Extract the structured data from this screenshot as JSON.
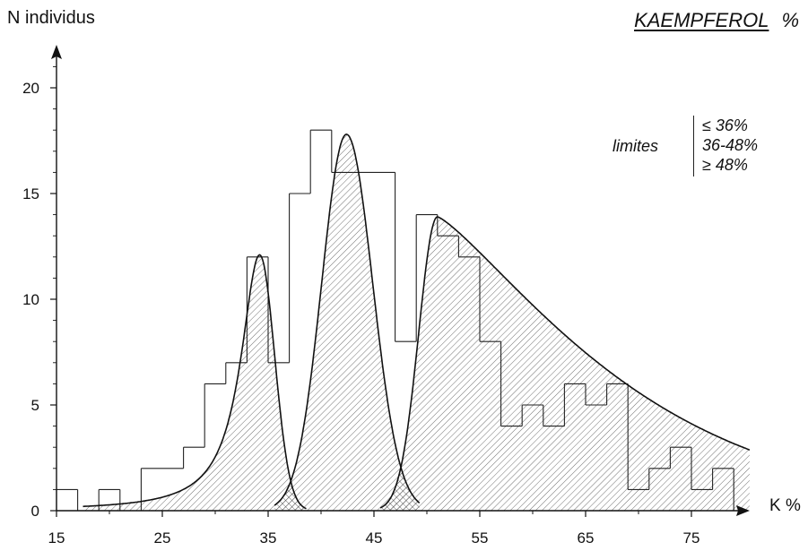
{
  "title": {
    "main": "KAEMPFEROL",
    "unit": "%"
  },
  "chart_data": {
    "type": "bar",
    "title": "KAEMPFEROL %",
    "xlabel": "K %",
    "ylabel": "N individus",
    "xlim": [
      15,
      81
    ],
    "ylim": [
      0,
      22
    ],
    "x_ticks": [
      15,
      25,
      35,
      45,
      55,
      65,
      75
    ],
    "y_ticks": [
      0,
      5,
      10,
      15,
      20
    ],
    "bin_edges": [
      15,
      17,
      19,
      21,
      23,
      25,
      27,
      29,
      31,
      33,
      35,
      37,
      39,
      41,
      43,
      45,
      47,
      49,
      51,
      53,
      55,
      57,
      59,
      61,
      63,
      65,
      67,
      69,
      71,
      73,
      75,
      77,
      79
    ],
    "values": [
      1,
      0,
      1,
      0,
      2,
      2,
      3,
      6,
      7,
      12,
      7,
      15,
      18,
      16,
      16,
      16,
      8,
      14,
      13,
      12,
      8,
      4,
      5,
      4,
      6,
      5,
      6,
      1,
      2,
      3,
      1,
      2
    ],
    "fitted_curves": [
      {
        "label": "≤ 36%",
        "peak_x": 34.2,
        "peak_y": 12.1
      },
      {
        "label": "36-48%",
        "peak_x": 42.4,
        "peak_y": 17.8
      },
      {
        "label": "≥ 48%",
        "peak_x": 51.0,
        "peak_y": 13.9
      }
    ],
    "legend": {
      "word": "limites",
      "entries": [
        "≤ 36%",
        "36-48%",
        "≥ 48%"
      ],
      "placement": "top-right"
    },
    "grid": false
  }
}
